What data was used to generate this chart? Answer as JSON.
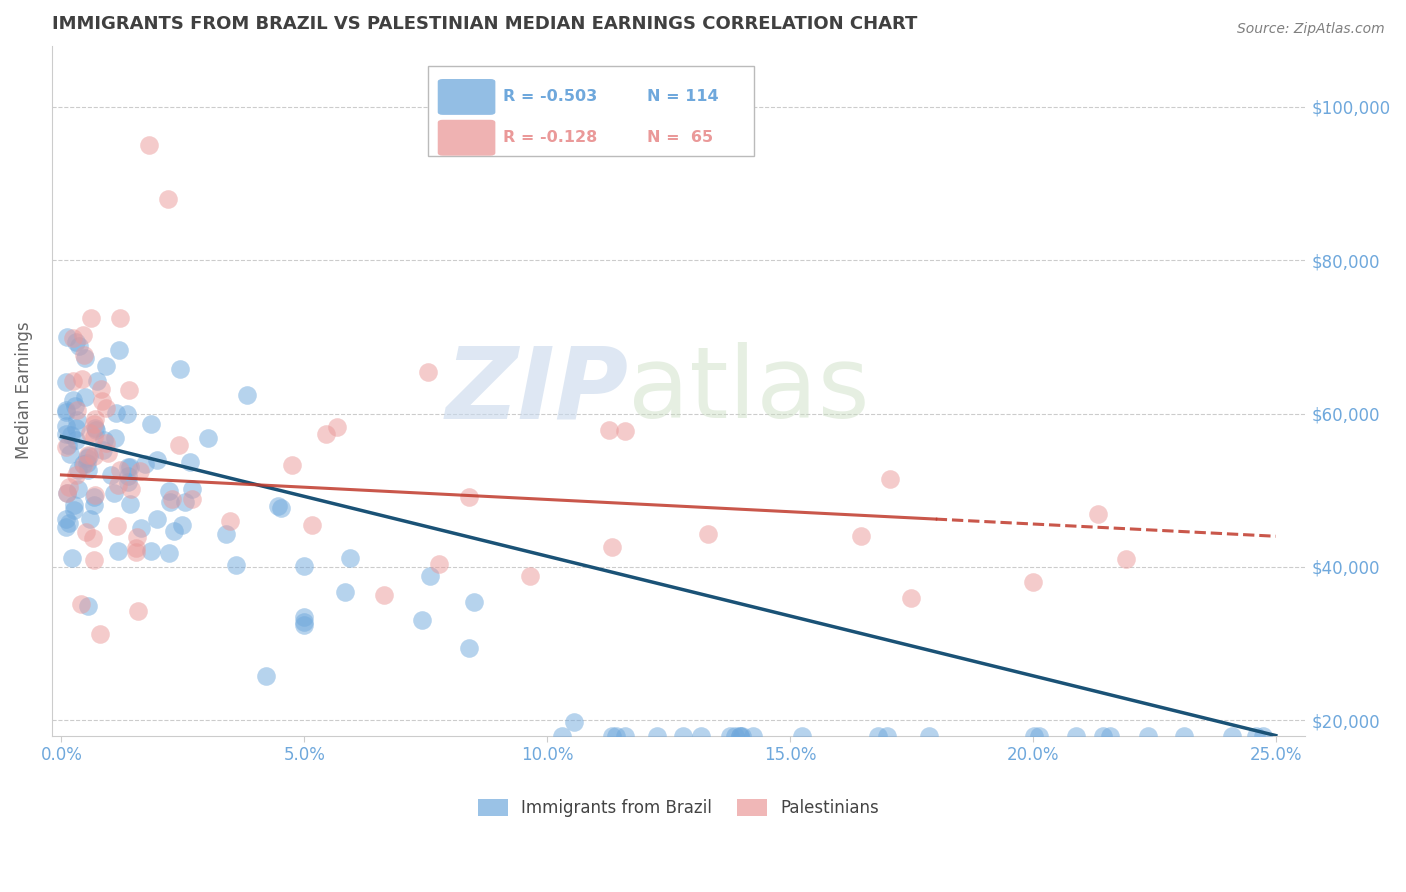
{
  "title": "IMMIGRANTS FROM BRAZIL VS PALESTINIAN MEDIAN EARNINGS CORRELATION CHART",
  "source": "Source: ZipAtlas.com",
  "ylabel": "Median Earnings",
  "series": [
    {
      "name": "Immigrants from Brazil",
      "color": "#6fa8dc",
      "R": -0.503,
      "N": 114
    },
    {
      "name": "Palestinians",
      "color": "#ea9999",
      "R": -0.128,
      "N": 65
    }
  ],
  "ylim": [
    18000,
    108000
  ],
  "xlim": [
    -0.002,
    0.256
  ],
  "yticks": [
    20000,
    40000,
    60000,
    80000,
    100000
  ],
  "ytick_labels": [
    "$20,000",
    "$40,000",
    "$60,000",
    "$80,000",
    "$100,000"
  ],
  "xticks": [
    0.0,
    0.05,
    0.1,
    0.15,
    0.2,
    0.25
  ],
  "xtick_labels": [
    "0.0%",
    "5.0%",
    "10.0%",
    "15.0%",
    "20.0%",
    "25.0%"
  ],
  "grid_color": "#cccccc",
  "background_color": "#ffffff",
  "title_color": "#404040",
  "axis_color": "#6fa8dc",
  "source_color": "#808080",
  "blue_line": {
    "x0": 0.0,
    "y0": 57000,
    "x1": 0.25,
    "y1": 18000
  },
  "pink_line": {
    "x0": 0.0,
    "y0": 52000,
    "x1": 0.25,
    "y1": 44000
  },
  "legend_items": [
    {
      "color": "#6fa8dc",
      "R": "R = -0.503",
      "N": "N = 114"
    },
    {
      "color": "#ea9999",
      "R": "R = -0.128",
      "N": "N =  65"
    }
  ]
}
